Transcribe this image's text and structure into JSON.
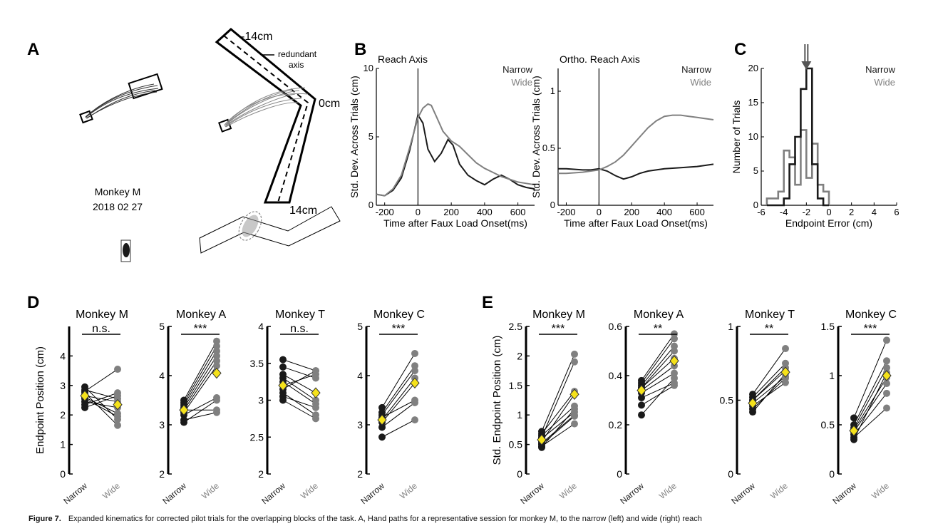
{
  "panels": {
    "A": {
      "letter": "A",
      "monkey_label": "Monkey M",
      "date_label": "2018 02 27",
      "label_start": "-14cm",
      "label_mid": "0cm",
      "label_end": "14cm",
      "redundant_axis_line1": "redundant",
      "redundant_axis_line2": "axis"
    },
    "B": {
      "letter": "B"
    },
    "C": {
      "letter": "C"
    },
    "D": {
      "letter": "D"
    },
    "E": {
      "letter": "E"
    }
  },
  "colors": {
    "narrow": "#1a1a1a",
    "wide": "#808080",
    "mean_marker": "#f5e21b"
  },
  "chart_data": [
    {
      "id": "B-left",
      "type": "line",
      "title": "Reach Axis",
      "xlabel": "Time after Faux Load Onset(ms)",
      "ylabel": "Std. Dev. Across Trials (cm)",
      "xlim": [
        -250,
        700
      ],
      "ylim": [
        0,
        10
      ],
      "xticks": [
        -200,
        0,
        200,
        400,
        600
      ],
      "yticks": [
        0,
        5,
        10
      ],
      "vline": 0,
      "legend_position": "top-right",
      "series": [
        {
          "name": "Narrow",
          "x": [
            -250,
            -200,
            -150,
            -100,
            -50,
            0,
            30,
            60,
            100,
            140,
            180,
            210,
            250,
            300,
            350,
            400,
            450,
            500,
            550,
            600,
            650,
            700
          ],
          "y": [
            0.8,
            0.7,
            1.1,
            2.0,
            4.0,
            6.6,
            6.0,
            4.1,
            3.2,
            3.8,
            4.8,
            4.4,
            3.0,
            2.2,
            1.8,
            1.5,
            1.9,
            2.2,
            1.9,
            1.5,
            1.3,
            1.2
          ]
        },
        {
          "name": "Wide",
          "x": [
            -250,
            -200,
            -150,
            -100,
            -50,
            0,
            30,
            60,
            80,
            110,
            150,
            200,
            250,
            300,
            350,
            400,
            450,
            500,
            550,
            600,
            650,
            700
          ],
          "y": [
            0.8,
            0.7,
            1.2,
            2.2,
            4.2,
            6.4,
            7.1,
            7.4,
            7.3,
            6.5,
            5.4,
            4.7,
            4.3,
            3.7,
            3.1,
            2.7,
            2.4,
            2.1,
            1.9,
            1.7,
            1.6,
            1.5
          ]
        }
      ]
    },
    {
      "id": "B-right",
      "type": "line",
      "title": "Ortho. Reach Axis",
      "xlabel": "Time after Faux Load Onset(ms)",
      "ylabel": "Std. Dev. Across Trials (cm)",
      "xlim": [
        -250,
        700
      ],
      "ylim": [
        0,
        1.2
      ],
      "xticks": [
        -200,
        0,
        200,
        400,
        600
      ],
      "yticks": [
        0,
        0.5,
        1
      ],
      "vline": 0,
      "legend_position": "top-right",
      "series": [
        {
          "name": "Narrow",
          "x": [
            -250,
            -200,
            -100,
            -50,
            0,
            50,
            100,
            150,
            200,
            250,
            300,
            400,
            500,
            600,
            700
          ],
          "y": [
            0.32,
            0.32,
            0.31,
            0.31,
            0.32,
            0.3,
            0.26,
            0.23,
            0.25,
            0.28,
            0.3,
            0.32,
            0.33,
            0.34,
            0.36
          ]
        },
        {
          "name": "Wide",
          "x": [
            -250,
            -200,
            -100,
            -50,
            0,
            50,
            100,
            150,
            200,
            250,
            300,
            350,
            400,
            450,
            500,
            550,
            600,
            650,
            700
          ],
          "y": [
            0.28,
            0.28,
            0.29,
            0.3,
            0.31,
            0.34,
            0.38,
            0.44,
            0.52,
            0.6,
            0.68,
            0.74,
            0.78,
            0.79,
            0.79,
            0.78,
            0.77,
            0.76,
            0.75
          ]
        }
      ]
    },
    {
      "id": "C",
      "type": "bar",
      "xlabel": "Endpoint Error (cm)",
      "ylabel": "Number of Trials",
      "xlim": [
        -6,
        6
      ],
      "ylim": [
        0,
        20
      ],
      "xticks": [
        -6,
        -4,
        -2,
        0,
        2,
        4,
        6
      ],
      "yticks": [
        0,
        5,
        10,
        15,
        20
      ],
      "bin_edges": [
        -5.5,
        -5,
        -4.5,
        -4,
        -3.5,
        -3,
        -2.5,
        -2,
        -1.5,
        -1,
        -0.5,
        0
      ],
      "legend_position": "top-right",
      "arrow_at": -2,
      "series": [
        {
          "name": "Narrow",
          "counts": [
            0,
            0,
            0,
            1,
            6,
            10,
            17,
            20,
            6,
            1,
            0
          ]
        },
        {
          "name": "Wide",
          "counts": [
            1,
            1,
            2,
            8,
            7,
            3,
            11,
            4,
            9,
            3,
            2
          ]
        }
      ]
    },
    {
      "id": "D-M",
      "type": "scatter",
      "title": "Monkey M",
      "ylabel": "Endpoint Position (cm)",
      "categories": [
        "Narrow",
        "Wide"
      ],
      "ylim": [
        0,
        5
      ],
      "yticks": [
        0,
        1,
        2,
        3,
        4
      ],
      "sig_label": "n.s.",
      "pairs": [
        [
          2.95,
          1.85
        ],
        [
          2.85,
          2.55
        ],
        [
          2.75,
          1.65
        ],
        [
          2.65,
          2.45
        ],
        [
          2.55,
          1.95
        ],
        [
          2.45,
          2.25
        ],
        [
          2.35,
          2.75
        ],
        [
          2.25,
          2.65
        ],
        [
          2.8,
          3.55
        ],
        [
          2.6,
          2.05
        ]
      ],
      "mean": [
        2.65,
        2.35
      ]
    },
    {
      "id": "D-A",
      "type": "scatter",
      "title": "Monkey A",
      "categories": [
        "Narrow",
        "Wide"
      ],
      "ylim": [
        2,
        5
      ],
      "yticks": [
        2,
        3,
        4,
        5
      ],
      "sig_label": "***",
      "pairs": [
        [
          3.5,
          4.7
        ],
        [
          3.45,
          4.6
        ],
        [
          3.4,
          4.5
        ],
        [
          3.35,
          4.4
        ],
        [
          3.3,
          4.3
        ],
        [
          3.25,
          4.2
        ],
        [
          3.2,
          3.55
        ],
        [
          3.3,
          3.3
        ],
        [
          3.1,
          3.25
        ],
        [
          3.05,
          3.5
        ]
      ],
      "mean": [
        3.3,
        4.05
      ]
    },
    {
      "id": "D-T",
      "type": "scatter",
      "title": "Monkey T",
      "categories": [
        "Narrow",
        "Wide"
      ],
      "ylim": [
        2,
        4
      ],
      "yticks": [
        2,
        2.5,
        3,
        3.5,
        4
      ],
      "sig_label": "n.s.",
      "pairs": [
        [
          3.55,
          3.4
        ],
        [
          3.45,
          3.3
        ],
        [
          3.35,
          3.1
        ],
        [
          3.25,
          2.95
        ],
        [
          3.15,
          3.4
        ],
        [
          3.05,
          2.9
        ],
        [
          3.1,
          2.8
        ],
        [
          3.3,
          3.0
        ],
        [
          3.0,
          2.75
        ],
        [
          3.2,
          3.35
        ]
      ],
      "mean": [
        3.2,
        3.1
      ]
    },
    {
      "id": "D-C",
      "type": "scatter",
      "title": "Monkey C",
      "categories": [
        "Narrow",
        "Wide"
      ],
      "ylim": [
        2,
        5
      ],
      "yticks": [
        2,
        3,
        4,
        5
      ],
      "sig_label": "***",
      "pairs": [
        [
          3.35,
          4.45
        ],
        [
          3.25,
          4.2
        ],
        [
          3.2,
          4.1
        ],
        [
          3.15,
          3.5
        ],
        [
          3.05,
          3.85
        ],
        [
          2.95,
          3.45
        ],
        [
          2.75,
          3.1
        ],
        [
          3.1,
          3.95
        ]
      ],
      "mean": [
        3.1,
        3.85
      ]
    },
    {
      "id": "E-M",
      "type": "scatter",
      "title": "Monkey M",
      "ylabel": "Std. Endpoint Position (cm)",
      "categories": [
        "Narrow",
        "Wide"
      ],
      "ylim": [
        0,
        2.5
      ],
      "yticks": [
        0,
        0.5,
        1,
        1.5,
        2,
        2.5
      ],
      "sig_label": "***",
      "pairs": [
        [
          0.72,
          2.03
        ],
        [
          0.68,
          1.4
        ],
        [
          0.65,
          1.15
        ],
        [
          0.6,
          1.05
        ],
        [
          0.55,
          1.35
        ],
        [
          0.5,
          0.98
        ],
        [
          0.47,
          0.85
        ],
        [
          0.45,
          1.1
        ],
        [
          0.62,
          1.9
        ],
        [
          0.52,
          1.0
        ]
      ],
      "mean": [
        0.58,
        1.35
      ]
    },
    {
      "id": "E-A",
      "type": "scatter",
      "title": "Monkey A",
      "categories": [
        "Narrow",
        "Wide"
      ],
      "ylim": [
        0,
        0.6
      ],
      "yticks": [
        0,
        0.2,
        0.4,
        0.6
      ],
      "sig_label": "**",
      "pairs": [
        [
          0.38,
          0.57
        ],
        [
          0.37,
          0.55
        ],
        [
          0.36,
          0.52
        ],
        [
          0.35,
          0.47
        ],
        [
          0.34,
          0.44
        ],
        [
          0.33,
          0.41
        ],
        [
          0.31,
          0.37
        ],
        [
          0.28,
          0.36
        ],
        [
          0.24,
          0.39
        ],
        [
          0.35,
          0.5
        ]
      ],
      "mean": [
        0.34,
        0.46
      ]
    },
    {
      "id": "E-T",
      "type": "scatter",
      "title": "Monkey T",
      "categories": [
        "Narrow",
        "Wide"
      ],
      "ylim": [
        0,
        1
      ],
      "yticks": [
        0,
        0.5,
        1
      ],
      "sig_label": "**",
      "pairs": [
        [
          0.54,
          0.85
        ],
        [
          0.52,
          0.75
        ],
        [
          0.5,
          0.7
        ],
        [
          0.48,
          0.66
        ],
        [
          0.46,
          0.62
        ],
        [
          0.44,
          0.65
        ],
        [
          0.42,
          0.68
        ],
        [
          0.5,
          0.72
        ]
      ],
      "mean": [
        0.48,
        0.69
      ]
    },
    {
      "id": "E-C",
      "type": "scatter",
      "title": "Monkey C",
      "categories": [
        "Narrow",
        "Wide"
      ],
      "ylim": [
        0,
        1.5
      ],
      "yticks": [
        0,
        0.5,
        1,
        1.5
      ],
      "sig_label": "***",
      "pairs": [
        [
          0.57,
          1.36
        ],
        [
          0.5,
          1.15
        ],
        [
          0.47,
          1.08
        ],
        [
          0.45,
          0.98
        ],
        [
          0.43,
          0.92
        ],
        [
          0.4,
          0.82
        ],
        [
          0.37,
          0.67
        ],
        [
          0.35,
          1.03
        ]
      ],
      "mean": [
        0.44,
        1.0
      ]
    }
  ],
  "caption": {
    "figure_label": "Figure 7.",
    "text": "Expanded kinematics for corrected pilot trials for the overlapping blocks of the task. A, Hand paths for a representative session for monkey M, to the narrow (left) and wide (right) reach"
  }
}
